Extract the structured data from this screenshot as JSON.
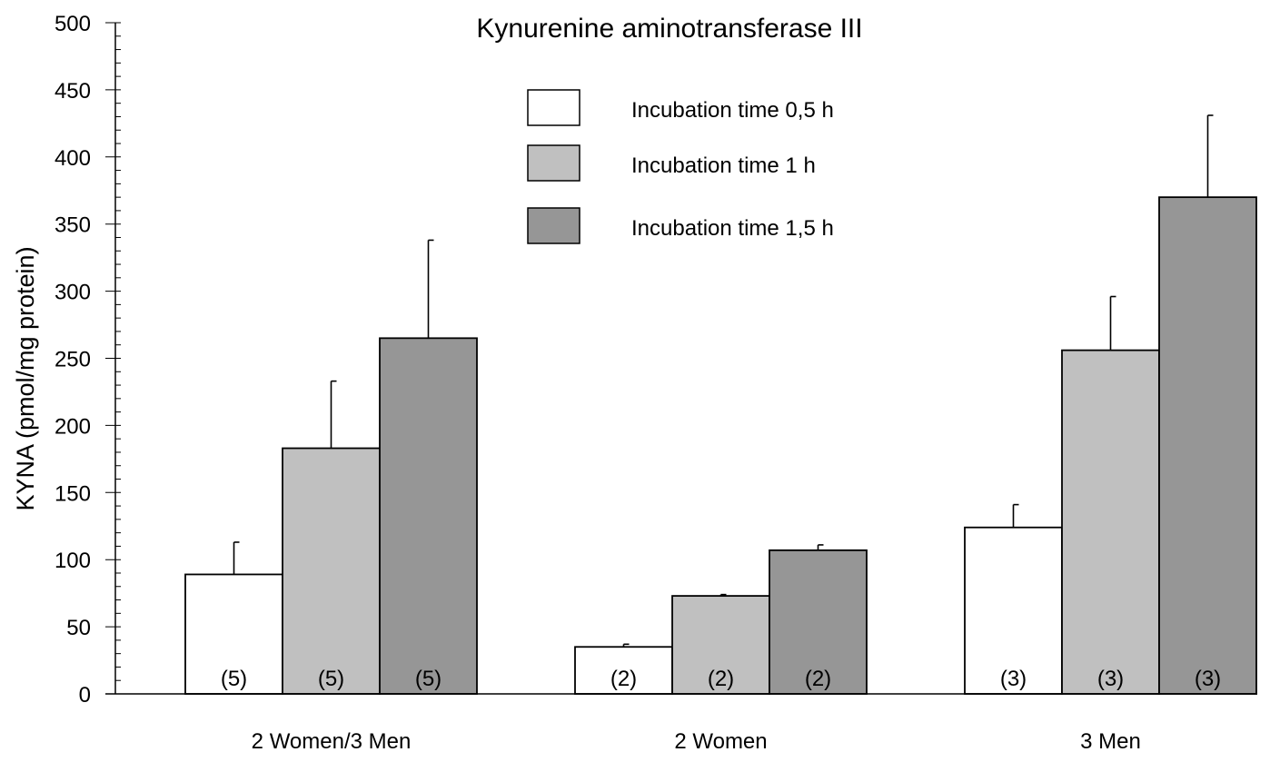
{
  "chart_data": {
    "type": "bar",
    "title": "Kynurenine aminotransferase III",
    "xlabel": "",
    "ylabel": "KYNA (pmol/mg protein)",
    "ylim": [
      0,
      500
    ],
    "yticks": [
      0,
      50,
      100,
      150,
      200,
      250,
      300,
      350,
      400,
      450,
      500
    ],
    "minor_tick_step": 10,
    "grid": false,
    "legend_position": "top-center",
    "categories": [
      "2 Women/3 Men",
      "2 Women",
      "3 Men"
    ],
    "series": [
      {
        "name": "Incubation time 0,5 h",
        "color": "#ffffff",
        "values": [
          89,
          35,
          124
        ],
        "errors": [
          24,
          2,
          17
        ],
        "n_labels": [
          "(5)",
          "(2)",
          "(3)"
        ]
      },
      {
        "name": "Incubation time 1 h",
        "color": "#c0c0c0",
        "values": [
          183,
          73,
          256
        ],
        "errors": [
          50,
          1,
          40
        ],
        "n_labels": [
          "(5)",
          "(2)",
          "(3)"
        ]
      },
      {
        "name": "Incubation time 1,5 h",
        "color": "#969696",
        "values": [
          265,
          107,
          370
        ],
        "errors": [
          73,
          4,
          61
        ],
        "n_labels": [
          "(5)",
          "(2)",
          "(3)"
        ]
      }
    ]
  }
}
